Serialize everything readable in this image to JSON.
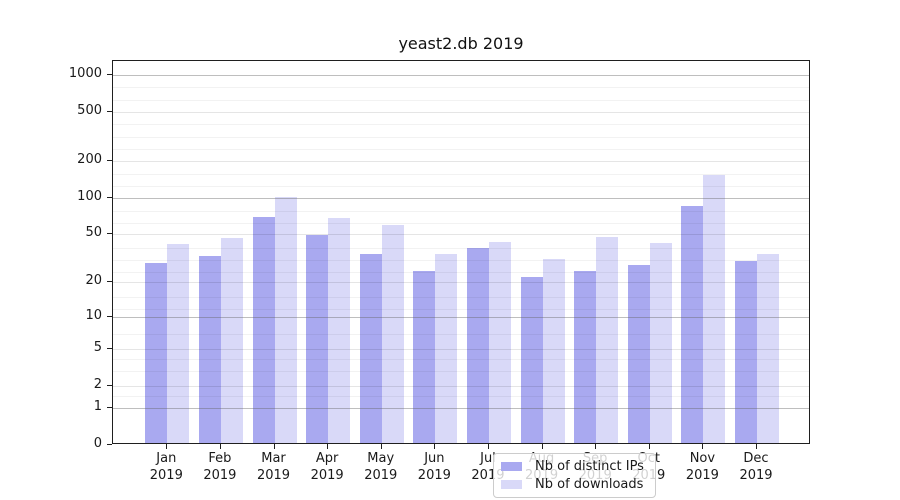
{
  "chart_data": {
    "type": "bar",
    "title": "yeast2.db 2019",
    "categories": [
      "Jan",
      "Feb",
      "Mar",
      "Apr",
      "May",
      "Jun",
      "Jul",
      "Aug",
      "Sep",
      "Oct",
      "Nov",
      "Dec"
    ],
    "year_label": "2019",
    "series": [
      {
        "name": "Nb of distinct IPs",
        "color": "#a9a9f0",
        "values": [
          28,
          32,
          67,
          48,
          33,
          24,
          37,
          21,
          24,
          27,
          83,
          29
        ]
      },
      {
        "name": "Nb of downloads",
        "color": "#d9d9f8",
        "values": [
          40,
          45,
          98,
          66,
          58,
          33,
          42,
          30,
          46,
          41,
          147,
          33
        ]
      }
    ],
    "yscale": "log1p",
    "yticks": [
      0,
      1,
      2,
      5,
      10,
      20,
      50,
      100,
      200,
      500,
      1000
    ],
    "decade_ticks": [
      1,
      10,
      100,
      1000
    ],
    "ylim": [
      0,
      1300
    ],
    "grid": true,
    "legend_position": "lower center",
    "colors": {
      "bar_dark": "#a9a9f0",
      "bar_light": "#d9d9f8",
      "axis": "#1f1f1f",
      "grid_decade": "#9c9c9c",
      "grid_minor": "#ededed"
    }
  }
}
